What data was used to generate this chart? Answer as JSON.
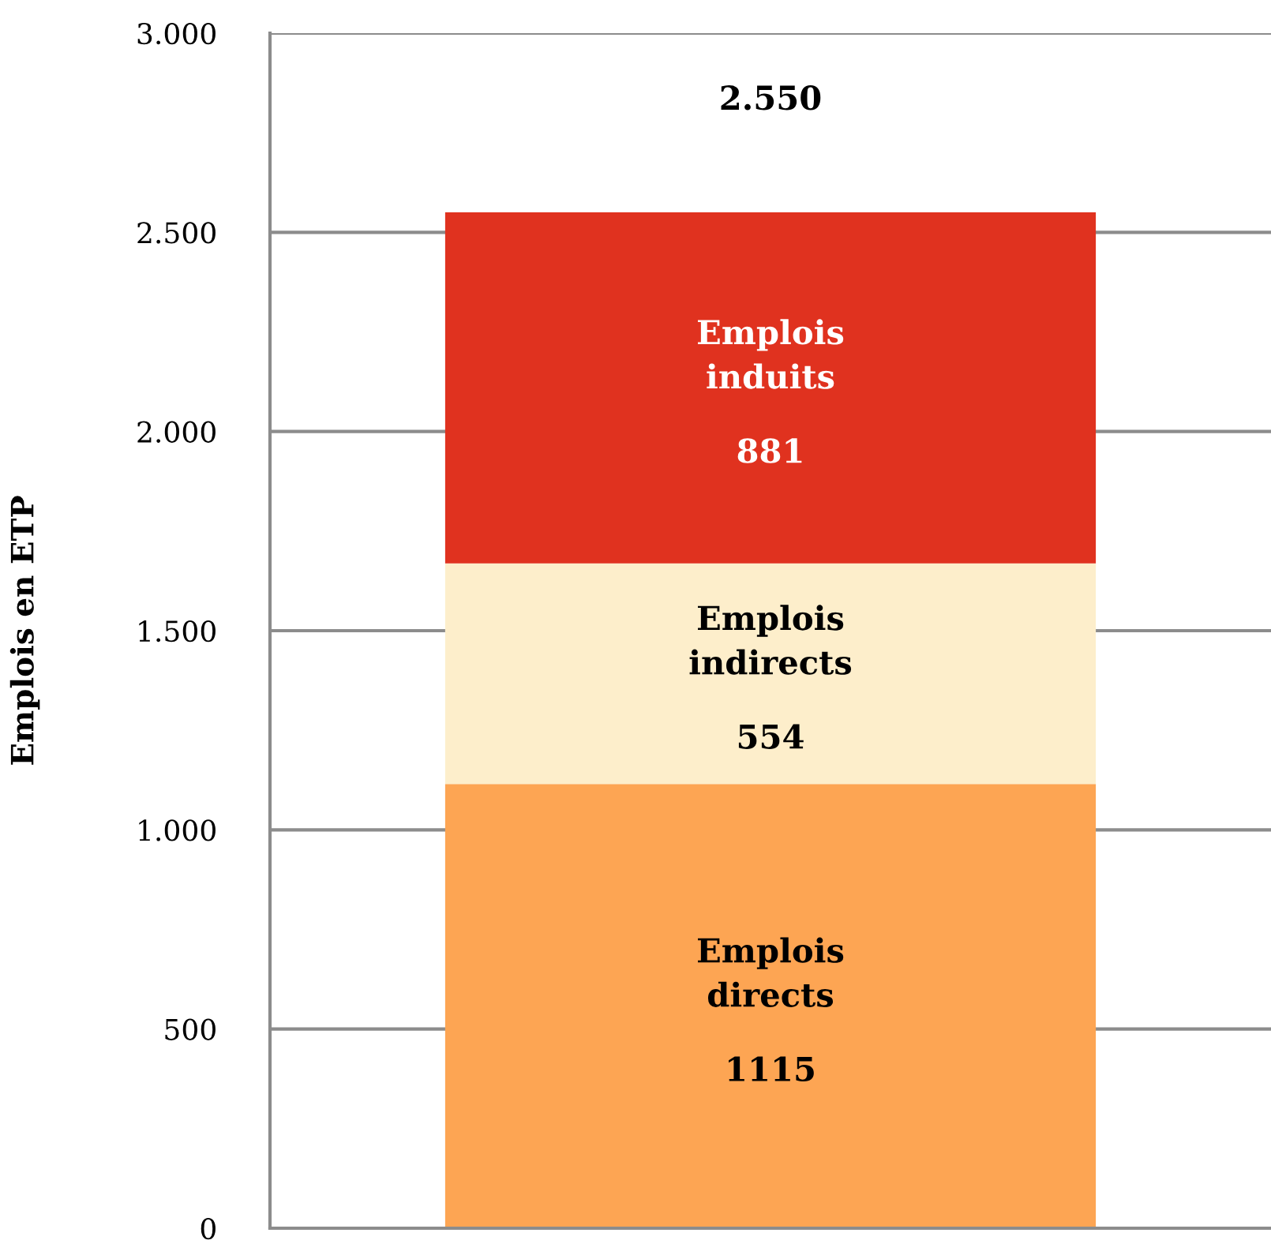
{
  "chart_data": {
    "type": "bar",
    "stacked": true,
    "categories": [
      null
    ],
    "ylabel": "Emplois en ETP",
    "series": [
      {
        "name": "Emplois directs",
        "color": "#fda553",
        "values": [
          1115
        ]
      },
      {
        "name": "Emplois indirects",
        "color": "#fdeecb",
        "values": [
          554
        ]
      },
      {
        "name": "Emplois induits",
        "color": "#e0321f",
        "values": [
          881
        ]
      }
    ],
    "data_labels": true,
    "totals": [
      "2.550"
    ],
    "ylim": [
      0,
      3000
    ],
    "yticks": [
      0,
      500,
      {
        "value": 1000,
        "label": "1.000"
      },
      {
        "value": 1500,
        "label": "1.500"
      },
      {
        "value": 2000,
        "label": "2.000"
      },
      {
        "value": 2500,
        "label": "2.500"
      },
      {
        "value": 3000,
        "label": "3.000"
      }
    ],
    "grid": "y"
  }
}
